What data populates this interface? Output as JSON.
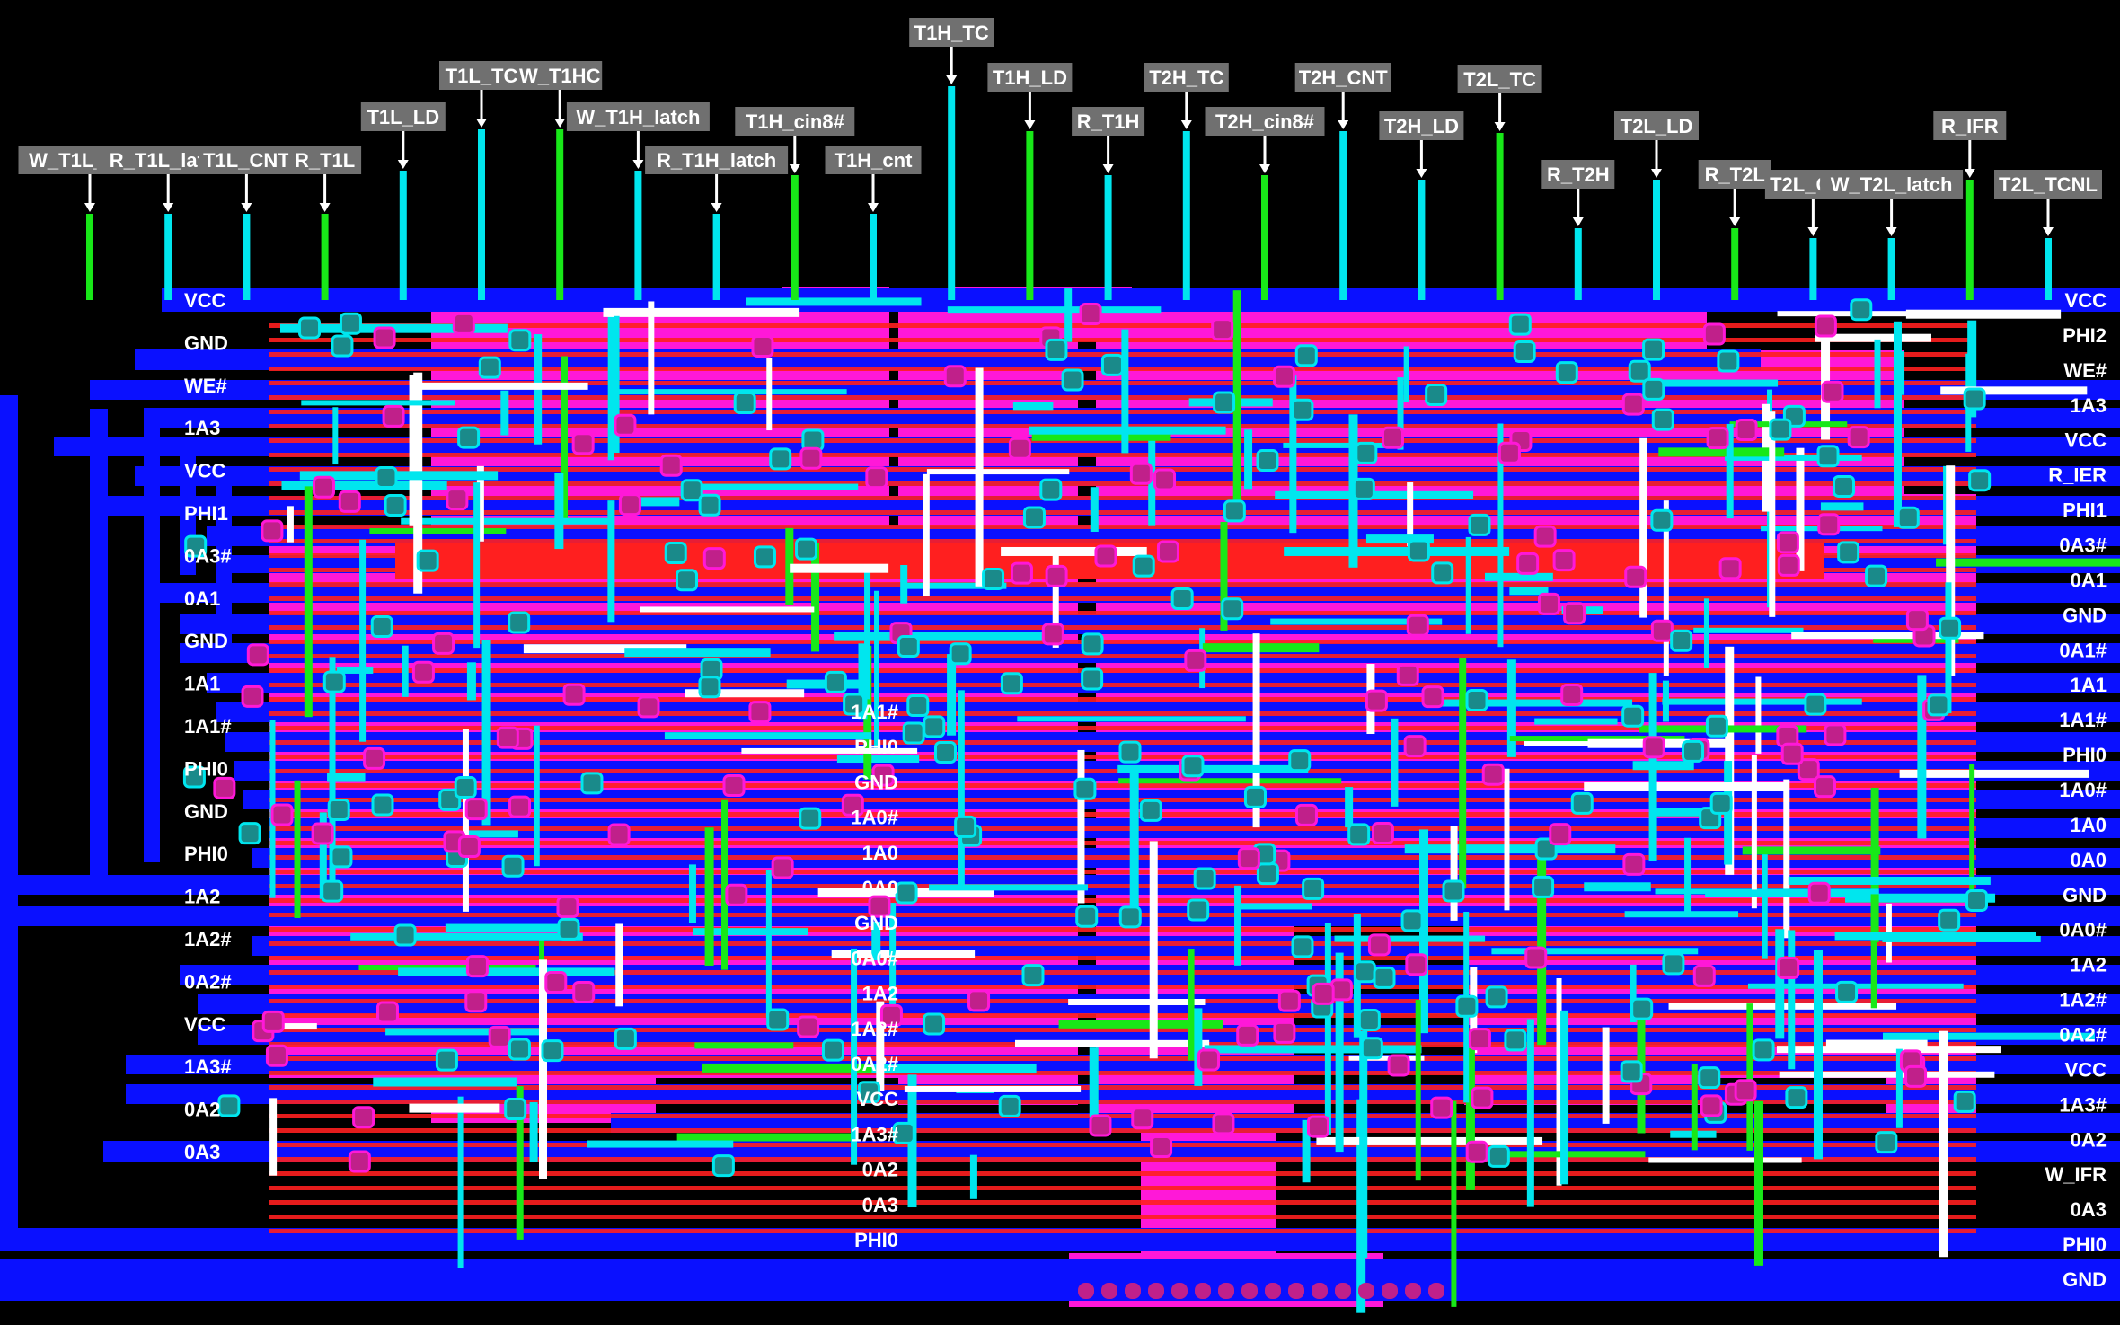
{
  "colors": {
    "background": "#000000",
    "metal": "#0a10ff",
    "poly": "#ff1f1f",
    "diffusion": "#ff18d8",
    "metal2": "#00e6ee",
    "buried": "#18e818",
    "highlight": "#ffffff",
    "contact": "#1a8a8a",
    "via": "#c0208a",
    "label_box": "#707070"
  },
  "top_pins": [
    "W_T1L_latch",
    "R_T1L_latch",
    "T1L_CNT",
    "R_T1L",
    "T1L_LD",
    "T1L_TC",
    "W_T1HC",
    "W_T1H_latch",
    "R_T1H_latch",
    "T1H_cin8#",
    "T1H_cnt",
    "T1H_TC",
    "T1H_LD",
    "R_T1H",
    "T2H_TC",
    "T2H_cin8#",
    "T2H_CNT",
    "T2H_LD",
    "T2L_TC",
    "R_T2H",
    "T2L_LD",
    "R_T2L",
    "T2L_CNT",
    "W_T2L_latch",
    "R_IFR",
    "T2L_TCNL"
  ],
  "left_rails": [
    "VCC",
    "GND",
    "WE#",
    "1A3",
    "VCC",
    "PHI1",
    "0A3#",
    "0A1",
    "GND",
    "1A1",
    "1A1#",
    "PHI0",
    "GND",
    "PHI0",
    "1A2",
    "1A2#",
    "0A2#",
    "VCC",
    "1A3#",
    "0A2",
    "0A3"
  ],
  "center_rails": [
    "1A1#",
    "PHI0",
    "GND",
    "1A0#",
    "1A0",
    "0A0",
    "GND",
    "0A0#",
    "1A2",
    "1A2#",
    "0A2#",
    "VCC",
    "1A3#",
    "0A2",
    "0A3",
    "PHI0"
  ],
  "right_rails": [
    "VCC",
    "PHI2",
    "WE#",
    "1A3",
    "VCC",
    "R_IER",
    "PHI1",
    "0A3#",
    "0A1",
    "GND",
    "0A1#",
    "1A1",
    "1A1#",
    "PHI0",
    "1A0#",
    "1A0",
    "0A0",
    "GND",
    "0A0#",
    "1A2",
    "1A2#",
    "0A2#",
    "VCC",
    "1A3#",
    "0A2",
    "W_IFR",
    "0A3",
    "PHI0",
    "GND"
  ]
}
